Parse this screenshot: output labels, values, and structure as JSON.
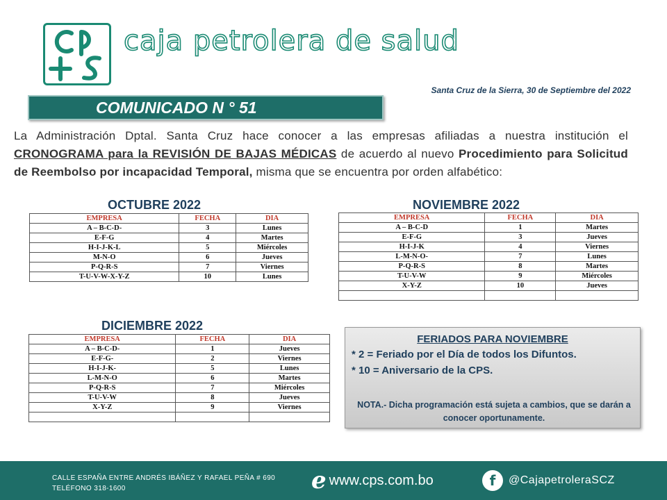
{
  "header": {
    "logo_text": "cp+s",
    "brand_name": "caja petrolera de salud",
    "date_line": "Santa Cruz de la Sierra, 30 de Septiembre del 2022",
    "comunicado": "COMUNICADO N ° 51"
  },
  "intro": {
    "part1": "La Administración Dptal. Santa Cruz hace conocer a las empresas afiliadas a nuestra institución el ",
    "underlined": "CRONOGRAMA para la REVISIÓN DE BAJAS MÉDICAS",
    "part2": " de acuerdo al nuevo ",
    "bold": "Procedimiento para Solicitud de Reembolso por incapacidad Temporal,",
    "part3": " misma que se encuentra por orden alfabético:"
  },
  "columns": [
    "EMPRESA",
    "FECHA",
    "DIA"
  ],
  "octubre": {
    "title": "OCTUBRE 2022",
    "rows": [
      [
        "A – B-C-D-",
        "3",
        "Lunes"
      ],
      [
        "E-F-G",
        "4",
        "Martes"
      ],
      [
        "H-I-J-K-L",
        "5",
        "Miércoles"
      ],
      [
        "M-N-O",
        "6",
        "Jueves"
      ],
      [
        "P-Q-R-S",
        "7",
        "Viernes"
      ],
      [
        "T-U-V-W-X-Y-Z",
        "10",
        "Lunes"
      ]
    ]
  },
  "noviembre": {
    "title": "NOVIEMBRE 2022",
    "rows": [
      [
        "A – B-C-D",
        "1",
        "Martes"
      ],
      [
        "E-F-G",
        "3",
        "Jueves"
      ],
      [
        "H-I-J-K",
        "4",
        "Viernes"
      ],
      [
        "L-M-N-O-",
        "7",
        "Lunes"
      ],
      [
        "P-Q-R-S",
        "8",
        "Martes"
      ],
      [
        "T-U-V-W",
        "9",
        "Miércoles"
      ],
      [
        "X-Y-Z",
        "10",
        "Jueves"
      ],
      [
        "",
        "",
        ""
      ]
    ]
  },
  "diciembre": {
    "title": "DICIEMBRE 2022",
    "rows": [
      [
        "A – B-C-D-",
        "1",
        "Jueves"
      ],
      [
        "E-F-G-",
        "2",
        "Viernes"
      ],
      [
        "H-I-J-K-",
        "5",
        "Lunes"
      ],
      [
        "L-M-N-O",
        "6",
        "Martes"
      ],
      [
        "P-Q-R-S",
        "7",
        "Miércoles"
      ],
      [
        "T-U-V-W",
        "8",
        "Jueves"
      ],
      [
        "X-Y-Z",
        "9",
        "Viernes"
      ],
      [
        "",
        "",
        ""
      ]
    ]
  },
  "feriados": {
    "title": "FERIADOS PARA NOVIEMBRE",
    "item1": "* 2 = Feriado por el Día de todos los Difuntos.",
    "item2": "* 10 = Aniversario de la CPS.",
    "nota": "NOTA.- Dicha programación está sujeta a cambios, que se darán a conocer oportunamente."
  },
  "footer": {
    "address_line1": "CALLE ESPAÑA ENTRE ANDRÉS IBÁÑEZ Y RAFAEL PEÑA # 690",
    "address_line2": "TELÉFONO 318-1600",
    "website": "www.cps.com.bo",
    "social_handle": "@CajapetroleraSCZ"
  },
  "colors": {
    "brand_green": "#1a8a73",
    "banner_teal": "#1e6e68",
    "title_navy": "#1f3f5c",
    "header_red": "#c0392b"
  },
  "icons": [
    "cps-logo",
    "internet-explorer-icon",
    "facebook-icon"
  ]
}
